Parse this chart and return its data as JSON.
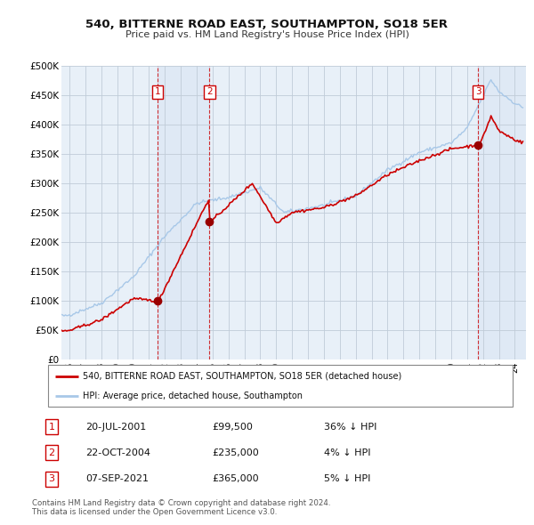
{
  "title": "540, BITTERNE ROAD EAST, SOUTHAMPTON, SO18 5ER",
  "subtitle": "Price paid vs. HM Land Registry's House Price Index (HPI)",
  "legend_property": "540, BITTERNE ROAD EAST, SOUTHAMPTON, SO18 5ER (detached house)",
  "legend_hpi": "HPI: Average price, detached house, Southampton",
  "footer1": "Contains HM Land Registry data © Crown copyright and database right 2024.",
  "footer2": "This data is licensed under the Open Government Licence v3.0.",
  "hpi_color": "#a8c8e8",
  "property_color": "#cc0000",
  "ylim": [
    0,
    500000
  ],
  "yticks": [
    0,
    50000,
    100000,
    150000,
    200000,
    250000,
    300000,
    350000,
    400000,
    450000,
    500000
  ],
  "ytick_labels": [
    "£0",
    "£50K",
    "£100K",
    "£150K",
    "£200K",
    "£250K",
    "£300K",
    "£350K",
    "£400K",
    "£450K",
    "£500K"
  ],
  "sales": [
    {
      "num": 1,
      "date": "20-JUL-2001",
      "price": 99500,
      "pct": "36%",
      "dir": "↓",
      "x_year": 2001.55
    },
    {
      "num": 2,
      "date": "22-OCT-2004",
      "price": 235000,
      "pct": "4%",
      "dir": "↓",
      "x_year": 2004.81
    },
    {
      "num": 3,
      "date": "07-SEP-2021",
      "price": 365000,
      "pct": "5%",
      "dir": "↓",
      "x_year": 2021.68
    }
  ],
  "xlim_start": 1995.5,
  "xlim_end": 2024.7,
  "chart_bg": "#e8f0f8"
}
